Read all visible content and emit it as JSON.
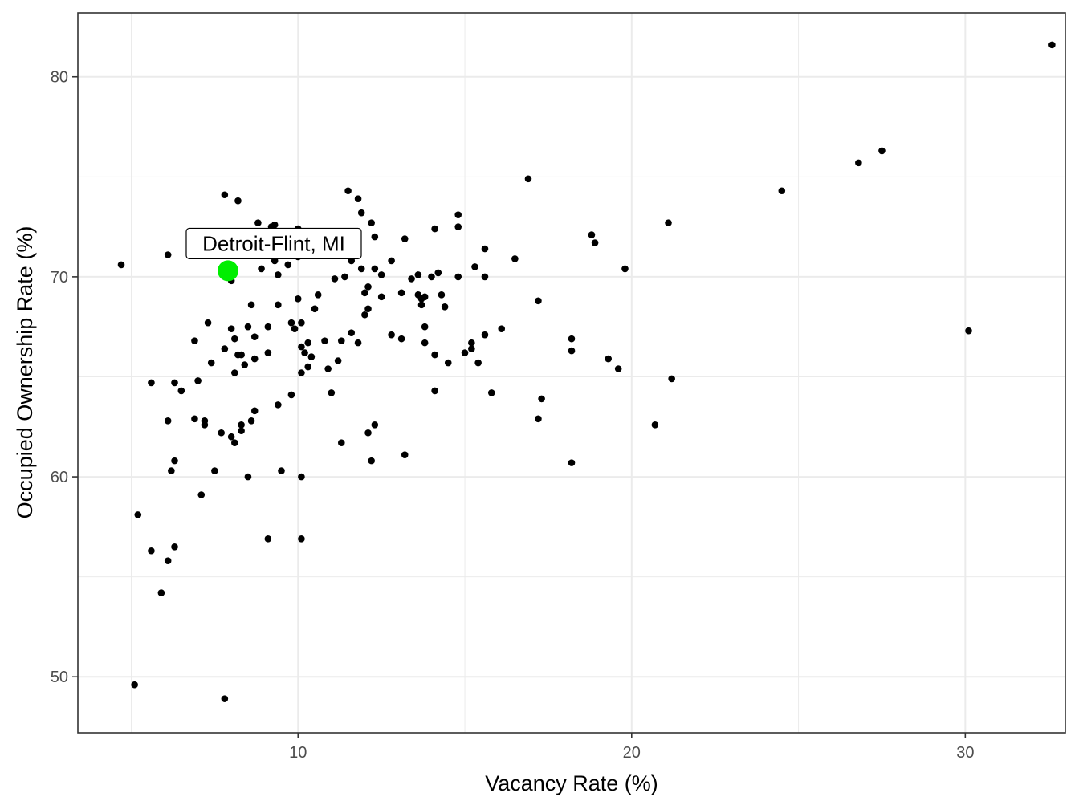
{
  "chart_data": {
    "type": "scatter",
    "title": "",
    "xlabel": "Vacancy Rate (%)",
    "ylabel": "Occupied Ownership Rate (%)",
    "xlim": [
      3.4,
      33.0
    ],
    "ylim": [
      47.2,
      83.2
    ],
    "x_ticks": [
      10,
      20,
      30
    ],
    "y_ticks": [
      50,
      60,
      70,
      80
    ],
    "grid": true,
    "legend": "none",
    "colors": {
      "points": "#000000",
      "highlight": "#00ee00",
      "grid": "#ebebeb",
      "border": "#333333"
    },
    "highlight": {
      "label": "Detroit-Flint, MI",
      "x": 7.9,
      "y": 70.3
    },
    "points": [
      [
        4.7,
        70.6
      ],
      [
        5.1,
        49.6
      ],
      [
        5.2,
        58.1
      ],
      [
        5.6,
        56.3
      ],
      [
        5.6,
        64.7
      ],
      [
        5.9,
        54.2
      ],
      [
        6.1,
        71.1
      ],
      [
        6.1,
        62.8
      ],
      [
        6.1,
        55.8
      ],
      [
        6.2,
        60.3
      ],
      [
        6.3,
        64.7
      ],
      [
        6.3,
        60.8
      ],
      [
        6.3,
        56.5
      ],
      [
        6.5,
        64.3
      ],
      [
        6.9,
        66.8
      ],
      [
        6.9,
        62.9
      ],
      [
        7.0,
        64.8
      ],
      [
        7.1,
        59.1
      ],
      [
        7.2,
        62.6
      ],
      [
        7.2,
        62.8
      ],
      [
        7.3,
        67.7
      ],
      [
        7.4,
        65.7
      ],
      [
        7.5,
        60.3
      ],
      [
        7.7,
        62.2
      ],
      [
        7.8,
        66.4
      ],
      [
        7.8,
        74.1
      ],
      [
        7.8,
        48.9
      ],
      [
        8.0,
        62.0
      ],
      [
        8.0,
        69.8
      ],
      [
        8.0,
        67.4
      ],
      [
        8.1,
        61.7
      ],
      [
        8.1,
        66.9
      ],
      [
        8.1,
        65.2
      ],
      [
        8.2,
        73.8
      ],
      [
        8.2,
        66.1
      ],
      [
        8.3,
        66.1
      ],
      [
        8.3,
        62.6
      ],
      [
        8.3,
        62.3
      ],
      [
        8.4,
        65.6
      ],
      [
        8.5,
        67.5
      ],
      [
        8.5,
        60.0
      ],
      [
        8.6,
        68.6
      ],
      [
        8.6,
        62.8
      ],
      [
        8.7,
        65.9
      ],
      [
        8.7,
        63.3
      ],
      [
        8.7,
        67.0
      ],
      [
        8.8,
        72.7
      ],
      [
        8.9,
        70.4
      ],
      [
        9.1,
        67.5
      ],
      [
        9.1,
        66.2
      ],
      [
        9.1,
        56.9
      ],
      [
        9.2,
        72.5
      ],
      [
        9.3,
        72.6
      ],
      [
        9.3,
        70.8
      ],
      [
        9.4,
        68.6
      ],
      [
        9.4,
        63.6
      ],
      [
        9.4,
        70.1
      ],
      [
        9.5,
        60.3
      ],
      [
        9.8,
        67.7
      ],
      [
        9.8,
        64.1
      ],
      [
        9.9,
        67.4
      ],
      [
        10.0,
        72.4
      ],
      [
        10.0,
        71.0
      ],
      [
        10.0,
        68.9
      ],
      [
        9.7,
        70.6
      ],
      [
        10.1,
        67.7
      ],
      [
        10.1,
        66.5
      ],
      [
        10.1,
        65.2
      ],
      [
        10.1,
        60.0
      ],
      [
        10.1,
        56.9
      ],
      [
        10.2,
        66.2
      ],
      [
        10.3,
        66.7
      ],
      [
        10.3,
        65.5
      ],
      [
        10.4,
        66.0
      ],
      [
        10.5,
        68.4
      ],
      [
        10.6,
        69.1
      ],
      [
        10.8,
        66.8
      ],
      [
        10.9,
        65.4
      ],
      [
        11.0,
        64.2
      ],
      [
        11.1,
        69.9
      ],
      [
        11.2,
        65.8
      ],
      [
        11.3,
        66.8
      ],
      [
        11.3,
        61.7
      ],
      [
        11.4,
        70.0
      ],
      [
        11.5,
        74.3
      ],
      [
        11.6,
        70.8
      ],
      [
        11.6,
        67.2
      ],
      [
        11.8,
        73.9
      ],
      [
        11.8,
        66.7
      ],
      [
        11.9,
        73.2
      ],
      [
        11.9,
        70.4
      ],
      [
        12.0,
        69.2
      ],
      [
        12.0,
        68.1
      ],
      [
        12.1,
        69.5
      ],
      [
        12.1,
        68.4
      ],
      [
        12.1,
        62.2
      ],
      [
        12.2,
        72.7
      ],
      [
        12.2,
        60.8
      ],
      [
        12.3,
        72.0
      ],
      [
        12.3,
        70.4
      ],
      [
        12.3,
        62.6
      ],
      [
        12.5,
        70.1
      ],
      [
        12.5,
        69.0
      ],
      [
        12.8,
        70.8
      ],
      [
        12.8,
        67.1
      ],
      [
        13.1,
        69.2
      ],
      [
        13.1,
        66.9
      ],
      [
        13.2,
        71.9
      ],
      [
        13.2,
        61.1
      ],
      [
        13.4,
        69.9
      ],
      [
        13.6,
        70.1
      ],
      [
        13.6,
        69.1
      ],
      [
        13.7,
        68.9
      ],
      [
        13.7,
        68.6
      ],
      [
        13.8,
        69.0
      ],
      [
        13.8,
        67.5
      ],
      [
        13.8,
        66.7
      ],
      [
        14.0,
        70.0
      ],
      [
        14.1,
        72.4
      ],
      [
        14.1,
        66.1
      ],
      [
        14.1,
        64.3
      ],
      [
        14.2,
        70.2
      ],
      [
        14.3,
        69.1
      ],
      [
        14.4,
        68.5
      ],
      [
        14.5,
        65.7
      ],
      [
        14.8,
        73.1
      ],
      [
        14.8,
        72.5
      ],
      [
        14.8,
        70.0
      ],
      [
        15.0,
        66.2
      ],
      [
        15.2,
        66.4
      ],
      [
        15.2,
        66.7
      ],
      [
        15.3,
        70.5
      ],
      [
        15.4,
        65.7
      ],
      [
        15.6,
        71.4
      ],
      [
        15.6,
        70.0
      ],
      [
        15.6,
        67.1
      ],
      [
        15.8,
        64.2
      ],
      [
        16.1,
        67.4
      ],
      [
        16.5,
        70.9
      ],
      [
        16.9,
        74.9
      ],
      [
        17.2,
        68.8
      ],
      [
        17.2,
        62.9
      ],
      [
        17.3,
        63.9
      ],
      [
        18.2,
        66.9
      ],
      [
        18.2,
        66.3
      ],
      [
        18.2,
        60.7
      ],
      [
        18.8,
        72.1
      ],
      [
        18.9,
        71.7
      ],
      [
        19.3,
        65.9
      ],
      [
        19.6,
        65.4
      ],
      [
        19.8,
        70.4
      ],
      [
        20.7,
        62.6
      ],
      [
        21.1,
        72.7
      ],
      [
        21.2,
        64.9
      ],
      [
        24.5,
        74.3
      ],
      [
        26.8,
        75.7
      ],
      [
        27.5,
        76.3
      ],
      [
        30.1,
        67.3
      ],
      [
        32.6,
        81.6
      ]
    ]
  }
}
